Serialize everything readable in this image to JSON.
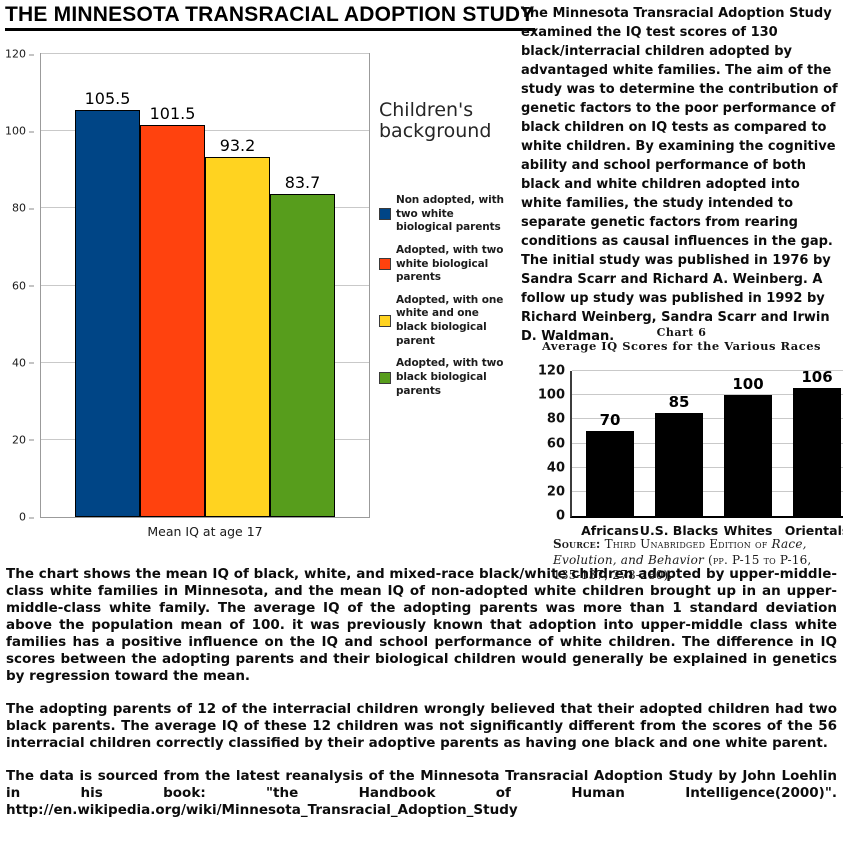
{
  "page_title": "THE MINNESOTA TRANSRACIAL ADOPTION STUDY",
  "intro_paragraph": "The Minnesota Transracial Adoption Study examined the IQ test scores of 130 black/interracial children adopted by advantaged white families. The aim of the study was to determine the contribution of genetic factors to the poor performance of black children on IQ tests as compared to white children. By examining the cognitive ability and school performance of both black and white children adopted into white families, the study intended to separate genetic factors from rearing conditions as causal influences in the gap. The initial study was published in 1976 by Sandra Scarr and Richard A. Weinberg. A follow up study was published in 1992 by Richard Weinberg, Sandra Scarr and Irwin D. Waldman.",
  "legend": {
    "title": "Children's background",
    "items": [
      {
        "label": "Non adopted, with two white biological parents",
        "color": "#004586"
      },
      {
        "label": "Adopted, with two white biological parents",
        "color": "#ff420e"
      },
      {
        "label": "Adopted, with one white and one black biological parent",
        "color": "#ffd320"
      },
      {
        "label": "Adopted, with two black biological parents",
        "color": "#579d1c"
      }
    ]
  },
  "chart_data": [
    {
      "type": "bar",
      "title": "",
      "categories": [
        "Non adopted, with two white biological parents",
        "Adopted, with two white biological parents",
        "Adopted, with one white and one black biological parent",
        "Adopted, with two black biological parents"
      ],
      "values": [
        105.5,
        101.5,
        93.2,
        83.7
      ],
      "colors": [
        "#004586",
        "#ff420e",
        "#ffd320",
        "#579d1c"
      ],
      "xlabel": "Mean IQ at age 17",
      "ylabel": "",
      "ylim": [
        0,
        120
      ],
      "ytick_step": 20,
      "grid": true,
      "show_categories": false,
      "value_labels": true,
      "legend_title": "Children's background",
      "legend_position": "right"
    },
    {
      "type": "bar",
      "title": "Chart 6",
      "subtitle": "Average IQ Scores for the Various Races",
      "categories": [
        "Africans",
        "U.S. Blacks",
        "Whites",
        "Orientals"
      ],
      "values": [
        70,
        85,
        100,
        106
      ],
      "bar_color": "#000000",
      "xlabel": "",
      "ylabel": "",
      "ylim": [
        0,
        120
      ],
      "ytick_step": 20,
      "grid": true,
      "show_categories": true,
      "value_labels": true,
      "source": {
        "label": "Source:",
        "before_title": " Third Unabridged Edition of ",
        "book_title": "Race, Evolution, and Behavior",
        "after_title": " (pp. P-15 to P-16, 135-137, 278-280)."
      }
    }
  ],
  "body_paragraphs": [
    "The chart shows the mean IQ of black, white, and mixed-race black/white children adopted by upper-middle-class white families in Minnesota, and the mean IQ of non-adopted white children brought up in an upper-middle-class white family. The average IQ of the adopting parents was more than 1 standard deviation above the population mean of 100. it was previously known that adoption into upper-middle class white families has a positive influence on the IQ and school performance of white children. The difference in IQ scores between the adopting parents and their biological children would generally be explained in genetics by regression toward the mean.",
    "The adopting parents of 12 of the interracial children wrongly believed that their adopted children had two black parents. The average IQ of these 12 children was not significantly different from the scores of the 56 interracial children correctly classified by their adoptive parents as having one black and one white parent.",
    "The data is sourced from the latest reanalysis of the Minnesota Transracial Adoption Study by John Loehlin in his book: \"the Handbook of Human Intelligence(2000)\". http://en.wikipedia.org/wiki/Minnesota_Transracial_Adoption_Study"
  ]
}
